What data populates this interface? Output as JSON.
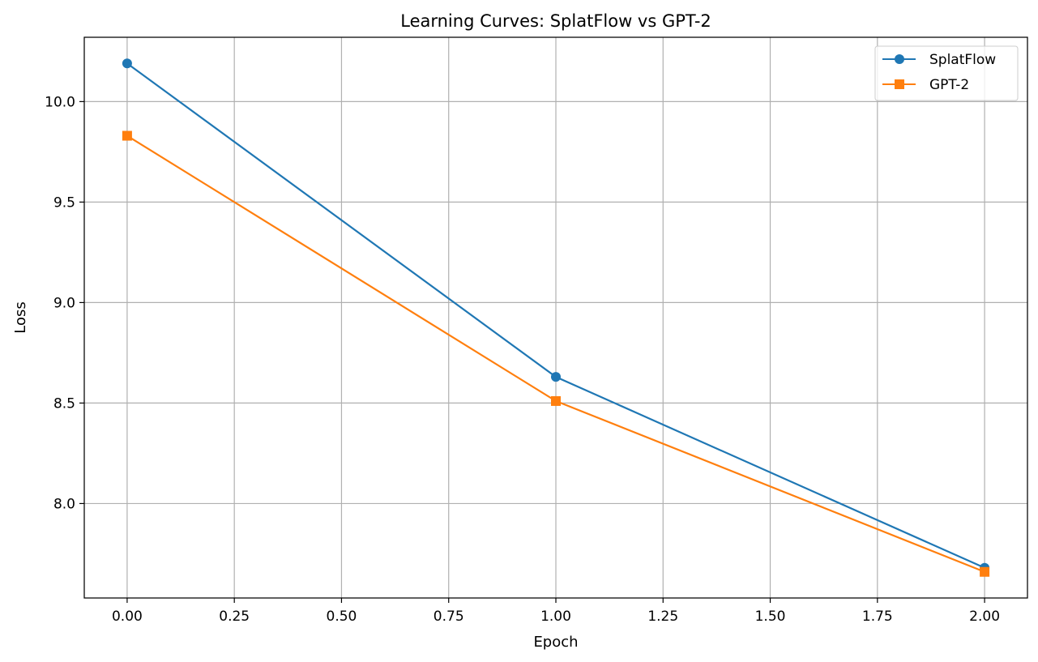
{
  "chart_data": {
    "type": "line",
    "title": "Learning Curves: SplatFlow vs GPT-2",
    "xlabel": "Epoch",
    "ylabel": "Loss",
    "x": [
      0,
      1,
      2
    ],
    "xlim": [
      -0.1,
      2.1
    ],
    "ylim": [
      7.53,
      10.32
    ],
    "xticks": [
      "0.00",
      "0.25",
      "0.50",
      "0.75",
      "1.00",
      "1.25",
      "1.50",
      "1.75",
      "2.00"
    ],
    "yticks": [
      "8.0",
      "8.5",
      "9.0",
      "9.5",
      "10.0"
    ],
    "grid": true,
    "legend_position": "top-right",
    "series": [
      {
        "name": "SplatFlow",
        "values": [
          10.19,
          8.63,
          7.68
        ],
        "color": "#1f77b4",
        "marker": "circle"
      },
      {
        "name": "GPT-2",
        "values": [
          9.83,
          8.51,
          7.66
        ],
        "color": "#ff7f0e",
        "marker": "square"
      }
    ]
  }
}
